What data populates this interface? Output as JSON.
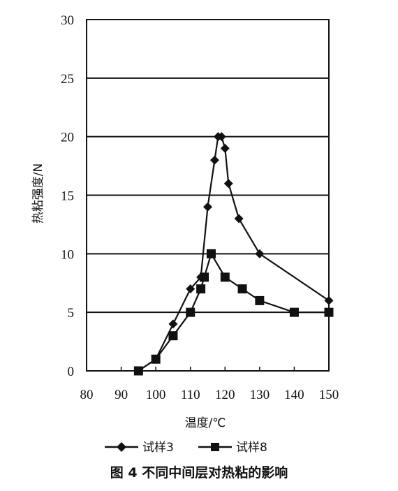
{
  "chart_data": {
    "type": "line",
    "xlabel": "温度/℃",
    "ylabel": "热粘强度/N",
    "xlim": [
      80,
      150
    ],
    "ylim": [
      0,
      30
    ],
    "x_ticks": [
      80,
      90,
      100,
      110,
      120,
      130,
      140,
      150
    ],
    "y_ticks": [
      0,
      5,
      10,
      15,
      20,
      25,
      30
    ],
    "grid": "horizontal",
    "legend_position": "bottom",
    "series": [
      {
        "name": "试样3",
        "marker": "diamond",
        "x": [
          95,
          100,
          105,
          110,
          113,
          115,
          117,
          118,
          119,
          120,
          121,
          124,
          130,
          150
        ],
        "y": [
          0,
          1,
          4,
          7,
          8,
          14,
          18,
          20,
          20,
          19,
          16,
          13,
          10,
          6
        ]
      },
      {
        "name": "试样8",
        "marker": "square",
        "x": [
          95,
          100,
          105,
          110,
          113,
          114,
          116,
          120,
          125,
          130,
          140,
          150
        ],
        "y": [
          0,
          1,
          3,
          5,
          7,
          8,
          10,
          8,
          7,
          6,
          5,
          5
        ]
      }
    ]
  },
  "caption": "图 4 不同中间层对热粘的影响",
  "colors": {
    "line": "#111111",
    "grid": "#111111",
    "background": "#ffffff"
  }
}
